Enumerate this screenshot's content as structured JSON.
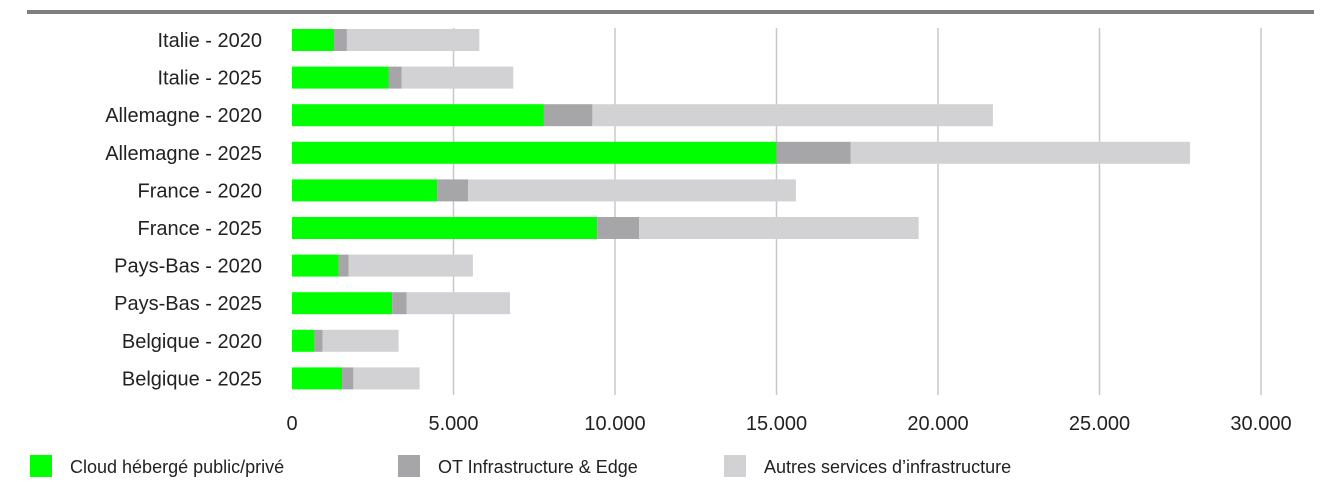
{
  "chart_data": {
    "type": "bar",
    "orientation": "horizontal",
    "stacked": true,
    "categories": [
      "Italie - 2020",
      "Italie - 2025",
      "Allemagne - 2020",
      "Allemagne - 2025",
      "France - 2020",
      "France - 2025",
      "Pays-Bas - 2020",
      "Pays-Bas - 2025",
      "Belgique - 2020",
      "Belgique - 2025"
    ],
    "series": [
      {
        "name": "Cloud hébergé public/privé",
        "color": "#00ff00",
        "values": [
          1300,
          3000,
          7800,
          15000,
          4500,
          9450,
          1450,
          3100,
          700,
          1550
        ]
      },
      {
        "name": "OT Infrastructure & Edge",
        "color": "#a6a6a8",
        "values": [
          400,
          400,
          1500,
          2300,
          950,
          1300,
          300,
          450,
          250,
          350
        ]
      },
      {
        "name": "Autres services d’infrastructure",
        "color": "#d2d2d4",
        "values": [
          4100,
          3450,
          12400,
          10500,
          10150,
          8650,
          3850,
          3200,
          2350,
          2050
        ]
      }
    ],
    "xlim": [
      0,
      30000
    ],
    "xticks": [
      0,
      5000,
      10000,
      15000,
      20000,
      25000,
      30000
    ],
    "xtick_labels": [
      "0",
      "5.000",
      "10.000",
      "15.000",
      "20.000",
      "25.000",
      "30.000"
    ],
    "grid": "vertical",
    "legend_position": "bottom",
    "title": "",
    "xlabel": "",
    "ylabel": ""
  }
}
